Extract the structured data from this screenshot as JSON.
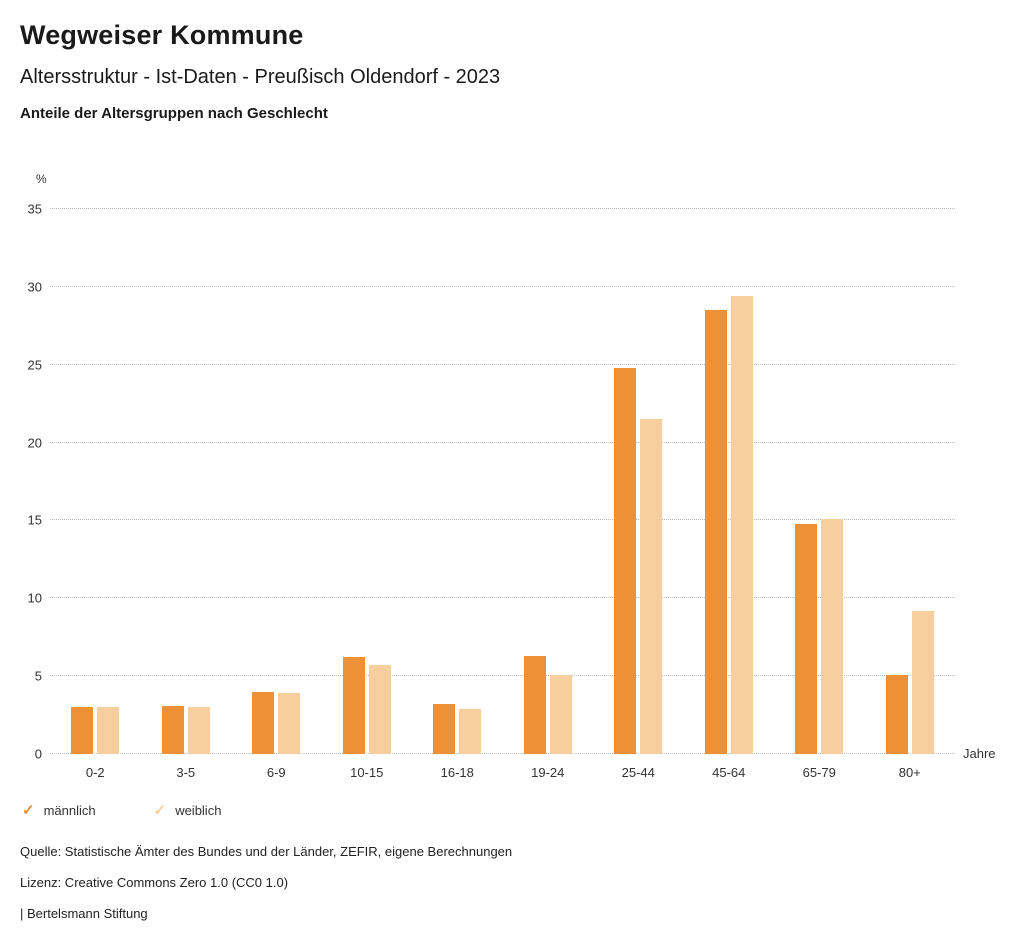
{
  "header": {
    "title": "Wegweiser Kommune",
    "subtitle": "Altersstruktur - Ist-Daten - Preußisch Oldendorf - 2023",
    "chart_heading": "Anteile der Altersgruppen nach Geschlecht"
  },
  "chart_data": {
    "type": "bar",
    "categories": [
      "0-2",
      "3-5",
      "6-9",
      "10-15",
      "16-18",
      "19-24",
      "25-44",
      "45-64",
      "65-79",
      "80+"
    ],
    "series": [
      {
        "name": "männlich",
        "color": "#ED9036",
        "values": [
          3.0,
          3.1,
          4.0,
          6.2,
          3.2,
          6.3,
          24.8,
          28.5,
          14.8,
          5.1
        ]
      },
      {
        "name": "weiblich",
        "color": "#F7CF9E",
        "values": [
          3.0,
          3.0,
          3.9,
          5.7,
          2.9,
          5.1,
          21.5,
          29.4,
          15.1,
          9.2
        ]
      }
    ],
    "title": "Anteile der Altersgruppen nach Geschlecht",
    "xlabel": "Jahre",
    "ylabel": "%",
    "ylim": [
      0,
      35
    ],
    "yticks": [
      0,
      5,
      10,
      15,
      20,
      25,
      30,
      35
    ],
    "grid": "dotted-horizontal",
    "legend_position": "bottom-left",
    "legend_icon": "check-icon"
  },
  "footer": {
    "source": "Quelle: Statistische Ämter des Bundes und der Länder, ZEFIR, eigene Berechnungen",
    "license": "Lizenz: Creative Commons Zero 1.0 (CC0 1.0)",
    "attribution": "| Bertelsmann Stiftung"
  }
}
